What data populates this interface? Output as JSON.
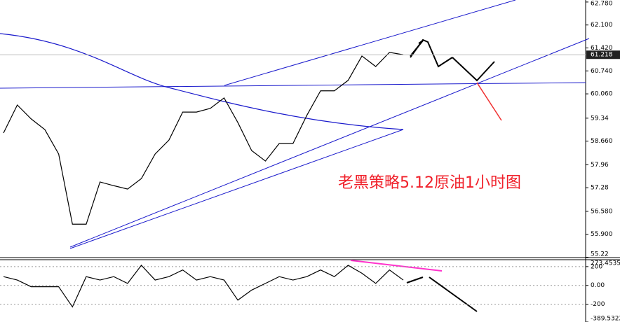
{
  "chart_data": [
    {
      "type": "line",
      "annotation": "老黑策略5.12原油1小时图",
      "series": [
        {
          "color": "#000000",
          "values": [
            58.9,
            59.73,
            59.32,
            59.0,
            58.28,
            56.2,
            56.2,
            57.45,
            57.34,
            57.24,
            57.55,
            58.28,
            58.69,
            59.52,
            59.52,
            59.63,
            59.94,
            59.21,
            58.38,
            58.07,
            58.59,
            58.59,
            59.42,
            60.15,
            60.15,
            60.46,
            61.18,
            60.87,
            61.29,
            61.218
          ]
        }
      ],
      "last_price": 61.218,
      "ylim": [
        55.21,
        62.84
      ],
      "yticks": [
        {
          "value": 62.78,
          "label": "62.780"
        },
        {
          "value": 62.1,
          "label": "62.100"
        },
        {
          "value": 61.42,
          "label": "61.420"
        },
        {
          "value": 60.74,
          "label": "60.740"
        },
        {
          "value": 60.06,
          "label": "60.060"
        },
        59.34,
        {
          "value": 58.66,
          "label": "58.660"
        },
        57.96,
        57.28,
        {
          "value": 56.58,
          "label": "56.580"
        },
        {
          "value": 55.9,
          "label": "55.900"
        },
        55.22
      ]
    },
    {
      "type": "line",
      "series": [
        {
          "color": "#000000",
          "values": [
            93,
            57,
            -14,
            -14,
            -14,
            -229,
            93,
            57,
            93,
            21,
            214,
            57,
            93,
            164,
            57,
            93,
            57,
            -157,
            -50,
            21,
            93,
            57,
            93,
            164,
            93,
            214,
            129,
            21,
            164,
            57
          ]
        }
      ],
      "ylim": [
        -389.5322,
        273.4535
      ],
      "yticks": [
        273.4535,
        200,
        {
          "value": 0,
          "label": "0.00"
        },
        -200,
        -389.5322
      ]
    }
  ]
}
